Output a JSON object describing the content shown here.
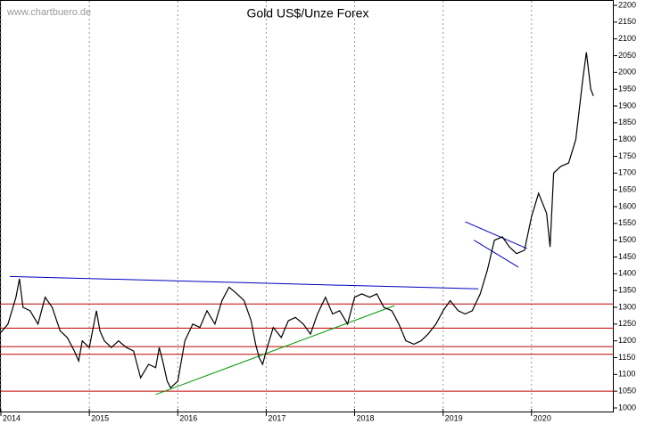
{
  "chart_data": {
    "type": "line",
    "title": "Gold US$/Unze Forex",
    "watermark": "www.chartbuero.de",
    "xlim": [
      2014,
      2020.93
    ],
    "xticks": [
      2014,
      2015,
      2016,
      2017,
      2018,
      2019,
      2020
    ],
    "ylim": [
      1000,
      2200
    ],
    "yticks": [
      1000,
      1050,
      1100,
      1150,
      1200,
      1250,
      1300,
      1350,
      1400,
      1450,
      1500,
      1550,
      1600,
      1650,
      1700,
      1750,
      1800,
      1850,
      1900,
      1950,
      2000,
      2050,
      2100,
      2150,
      2200
    ],
    "grid": true,
    "series": [
      {
        "name": "Gold",
        "color": "#000000",
        "x": [
          2014.0,
          2014.08,
          2014.17,
          2014.21,
          2014.25,
          2014.33,
          2014.42,
          2014.5,
          2014.58,
          2014.67,
          2014.75,
          2014.83,
          2014.88,
          2014.92,
          2015.0,
          2015.08,
          2015.12,
          2015.17,
          2015.25,
          2015.33,
          2015.42,
          2015.5,
          2015.58,
          2015.67,
          2015.75,
          2015.79,
          2015.83,
          2015.88,
          2015.92,
          2015.96,
          2016.0,
          2016.08,
          2016.17,
          2016.25,
          2016.33,
          2016.42,
          2016.5,
          2016.58,
          2016.67,
          2016.75,
          2016.83,
          2016.88,
          2016.92,
          2016.96,
          2017.0,
          2017.08,
          2017.17,
          2017.25,
          2017.33,
          2017.42,
          2017.5,
          2017.58,
          2017.67,
          2017.75,
          2017.83,
          2017.92,
          2018.0,
          2018.08,
          2018.17,
          2018.25,
          2018.33,
          2018.42,
          2018.5,
          2018.58,
          2018.67,
          2018.75,
          2018.83,
          2018.92,
          2019.0,
          2019.08,
          2019.17,
          2019.25,
          2019.33,
          2019.42,
          2019.5,
          2019.58,
          2019.67,
          2019.75,
          2019.83,
          2019.92,
          2020.0,
          2020.08,
          2020.17,
          2020.21,
          2020.25,
          2020.33,
          2020.42,
          2020.5,
          2020.58,
          2020.62,
          2020.67,
          2020.7
        ],
        "values": [
          1225,
          1250,
          1330,
          1385,
          1300,
          1290,
          1250,
          1330,
          1300,
          1230,
          1210,
          1170,
          1140,
          1200,
          1180,
          1290,
          1230,
          1200,
          1180,
          1200,
          1180,
          1170,
          1090,
          1130,
          1120,
          1180,
          1140,
          1080,
          1060,
          1070,
          1080,
          1200,
          1250,
          1240,
          1290,
          1250,
          1320,
          1360,
          1340,
          1320,
          1260,
          1190,
          1150,
          1130,
          1170,
          1240,
          1210,
          1260,
          1270,
          1250,
          1220,
          1280,
          1330,
          1280,
          1290,
          1250,
          1330,
          1340,
          1330,
          1340,
          1300,
          1290,
          1250,
          1200,
          1190,
          1200,
          1220,
          1250,
          1290,
          1320,
          1290,
          1280,
          1290,
          1340,
          1410,
          1500,
          1510,
          1480,
          1460,
          1470,
          1570,
          1640,
          1580,
          1480,
          1700,
          1720,
          1730,
          1800,
          1980,
          2060,
          1950,
          1930
        ]
      }
    ],
    "hlines": {
      "color": "#c00000",
      "values": [
        1310,
        1238,
        1183,
        1160,
        1050
      ]
    },
    "trendlines": [
      {
        "color": "#0000c0",
        "x": [
          2014.1,
          2019.4
        ],
        "y": [
          1392,
          1355
        ]
      },
      {
        "color": "#009900",
        "x": [
          2015.75,
          2018.45
        ],
        "y": [
          1040,
          1305
        ]
      },
      {
        "color": "#0000c0",
        "x": [
          2019.25,
          2019.95
        ],
        "y": [
          1555,
          1475
        ]
      },
      {
        "color": "#0000c0",
        "x": [
          2019.35,
          2019.85
        ],
        "y": [
          1500,
          1420
        ]
      }
    ]
  }
}
